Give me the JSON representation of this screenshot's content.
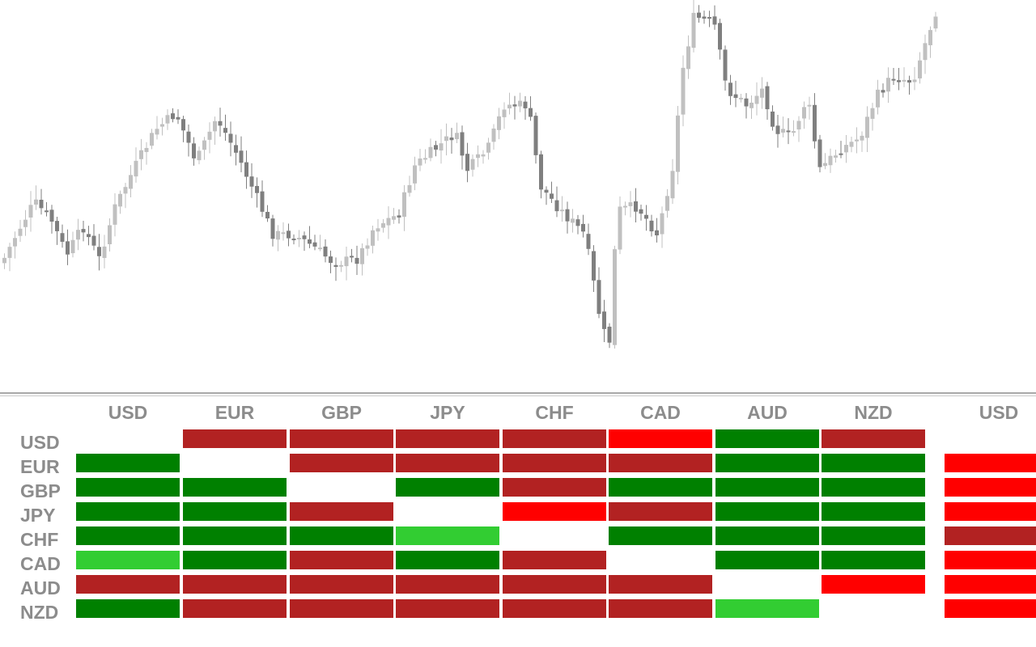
{
  "colors": {
    "strong_buy": "#008000",
    "buy": "#32cd32",
    "strong_sell": "#b22222",
    "sell": "#ff0000",
    "candle_bull": "#c0c0c0",
    "candle_bear": "#7f7f7f"
  },
  "strength_matrix": {
    "column_headers": [
      "USD",
      "EUR",
      "GBP",
      "JPY",
      "CHF",
      "CAD",
      "AUD",
      "NZD"
    ],
    "side_column_header": "USD",
    "rows": [
      {
        "label": "USD",
        "cells": [
          "none",
          "strong_sell",
          "strong_sell",
          "strong_sell",
          "strong_sell",
          "sell",
          "strong_buy",
          "strong_sell"
        ],
        "side": "none"
      },
      {
        "label": "EUR",
        "cells": [
          "strong_buy",
          "none",
          "strong_sell",
          "strong_sell",
          "strong_sell",
          "strong_sell",
          "strong_buy",
          "strong_buy"
        ],
        "side": "sell"
      },
      {
        "label": "GBP",
        "cells": [
          "strong_buy",
          "strong_buy",
          "none",
          "strong_buy",
          "strong_sell",
          "strong_buy",
          "strong_buy",
          "strong_buy"
        ],
        "side": "sell"
      },
      {
        "label": "JPY",
        "cells": [
          "strong_buy",
          "strong_buy",
          "strong_sell",
          "none",
          "sell",
          "strong_sell",
          "strong_buy",
          "strong_buy"
        ],
        "side": "sell"
      },
      {
        "label": "CHF",
        "cells": [
          "strong_buy",
          "strong_buy",
          "strong_buy",
          "buy",
          "none",
          "strong_buy",
          "strong_buy",
          "strong_buy"
        ],
        "side": "strong_sell"
      },
      {
        "label": "CAD",
        "cells": [
          "buy",
          "strong_buy",
          "strong_sell",
          "strong_buy",
          "strong_sell",
          "none",
          "strong_buy",
          "strong_buy"
        ],
        "side": "sell"
      },
      {
        "label": "AUD",
        "cells": [
          "strong_sell",
          "strong_sell",
          "strong_sell",
          "strong_sell",
          "strong_sell",
          "strong_sell",
          "none",
          "sell"
        ],
        "side": "sell"
      },
      {
        "label": "NZD",
        "cells": [
          "strong_buy",
          "strong_sell",
          "strong_sell",
          "strong_sell",
          "strong_sell",
          "strong_sell",
          "buy",
          "none"
        ],
        "side": "sell"
      }
    ]
  }
}
